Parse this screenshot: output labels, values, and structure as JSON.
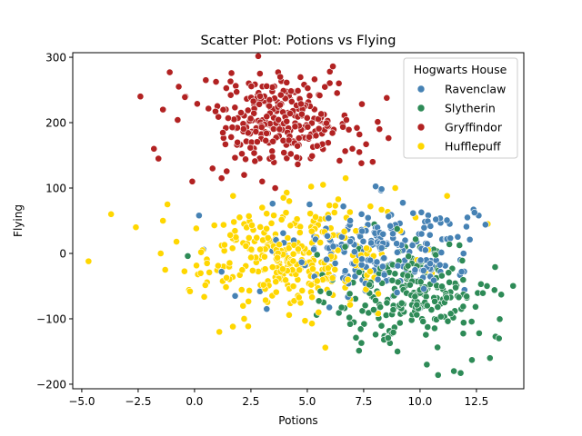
{
  "chart_data": {
    "type": "scatter",
    "title": "Scatter Plot: Potions vs Flying",
    "xlabel": "Potions",
    "ylabel": "Flying",
    "xlim": [
      -5.4,
      14.6
    ],
    "ylim": [
      -207,
      307
    ],
    "x_ticks": [
      -5.0,
      -2.5,
      0.0,
      2.5,
      5.0,
      7.5,
      10.0,
      12.5
    ],
    "x_tick_labels": [
      "−5.0",
      "−2.5",
      "0.0",
      "2.5",
      "5.0",
      "7.5",
      "10.0",
      "12.5"
    ],
    "y_ticks": [
      -200,
      -100,
      0,
      100,
      200,
      300
    ],
    "y_tick_labels": [
      "−200",
      "−100",
      "0",
      "100",
      "200",
      "300"
    ],
    "grid": false,
    "legend": {
      "title": "Hogwarts House",
      "position": "top-right"
    },
    "marker_edge_color": "#ffffff",
    "series": [
      {
        "name": "Ravenclaw",
        "color": "#4682b4",
        "center": [
          8.3,
          8
        ],
        "spread": [
          2.0,
          35
        ],
        "count": 220,
        "points": [
          [
            0.2,
            58
          ],
          [
            0.4,
            6
          ],
          [
            1.2,
            -28
          ],
          [
            1.8,
            -65
          ],
          [
            2.9,
            -58
          ],
          [
            3.2,
            -85
          ],
          [
            12.1,
            55
          ],
          [
            12.6,
            58
          ],
          [
            12.9,
            44
          ],
          [
            4.4,
            20
          ],
          [
            5.1,
            75
          ],
          [
            6.6,
            72
          ],
          [
            11.2,
            22
          ],
          [
            10.7,
            52
          ],
          [
            8.6,
            -41
          ]
        ]
      },
      {
        "name": "Slytherin",
        "color": "#2e8b57",
        "center": [
          9.8,
          -62
        ],
        "spread": [
          1.7,
          38
        ],
        "count": 220,
        "points": [
          [
            -0.3,
            -4
          ],
          [
            7.4,
            -137
          ],
          [
            8.4,
            -132
          ],
          [
            9.0,
            -150
          ],
          [
            10.3,
            -170
          ],
          [
            10.8,
            -186
          ],
          [
            11.5,
            -180
          ],
          [
            11.8,
            -183
          ],
          [
            12.3,
            -163
          ],
          [
            13.1,
            -160
          ],
          [
            13.5,
            -130
          ],
          [
            13.6,
            -63
          ],
          [
            13.3,
            -56
          ],
          [
            12.7,
            -47
          ],
          [
            11.3,
            14
          ],
          [
            6.4,
            -91
          ],
          [
            6.9,
            -108
          ],
          [
            10.0,
            10
          ]
        ]
      },
      {
        "name": "Gryffindor",
        "color": "#b22222",
        "center": [
          3.9,
          205
        ],
        "spread": [
          1.6,
          32
        ],
        "count": 270,
        "points": [
          [
            -2.4,
            240
          ],
          [
            -1.1,
            277
          ],
          [
            -0.7,
            255
          ],
          [
            0.5,
            265
          ],
          [
            -1.8,
            160
          ],
          [
            -1.6,
            145
          ],
          [
            -1.4,
            220
          ],
          [
            -0.1,
            110
          ],
          [
            0.8,
            130
          ],
          [
            2.9,
            275
          ],
          [
            3.8,
            270
          ],
          [
            6.0,
            278
          ],
          [
            6.4,
            260
          ],
          [
            7.9,
            140
          ],
          [
            7.4,
            138
          ],
          [
            8.2,
            190
          ],
          [
            7.2,
            192
          ],
          [
            1.2,
            115
          ],
          [
            3.0,
            110
          ],
          [
            2.2,
            120
          ],
          [
            7.0,
            160
          ],
          [
            -0.4,
            240
          ]
        ]
      },
      {
        "name": "Hufflepuff",
        "color": "#ffd700",
        "center": [
          4.4,
          -5
        ],
        "spread": [
          2.1,
          38
        ],
        "count": 300,
        "points": [
          [
            -4.7,
            -12
          ],
          [
            -3.7,
            60
          ],
          [
            -2.6,
            40
          ],
          [
            -1.2,
            75
          ],
          [
            -1.4,
            50
          ],
          [
            -0.8,
            18
          ],
          [
            -1.5,
            0
          ],
          [
            -1.3,
            -25
          ],
          [
            -0.2,
            -58
          ],
          [
            1.1,
            -120
          ],
          [
            1.7,
            -112
          ],
          [
            2.2,
            -100
          ],
          [
            4.9,
            -103
          ],
          [
            5.8,
            -144
          ],
          [
            5.5,
            -90
          ],
          [
            7.8,
            72
          ],
          [
            8.9,
            100
          ],
          [
            9.8,
            55
          ],
          [
            11.2,
            88
          ],
          [
            6.7,
            115
          ],
          [
            5.7,
            105
          ],
          [
            4.2,
            80
          ],
          [
            3.0,
            70
          ],
          [
            2.2,
            45
          ],
          [
            1.8,
            20
          ],
          [
            13.0,
            45
          ],
          [
            7.6,
            -55
          ],
          [
            6.8,
            -40
          ]
        ]
      }
    ]
  }
}
